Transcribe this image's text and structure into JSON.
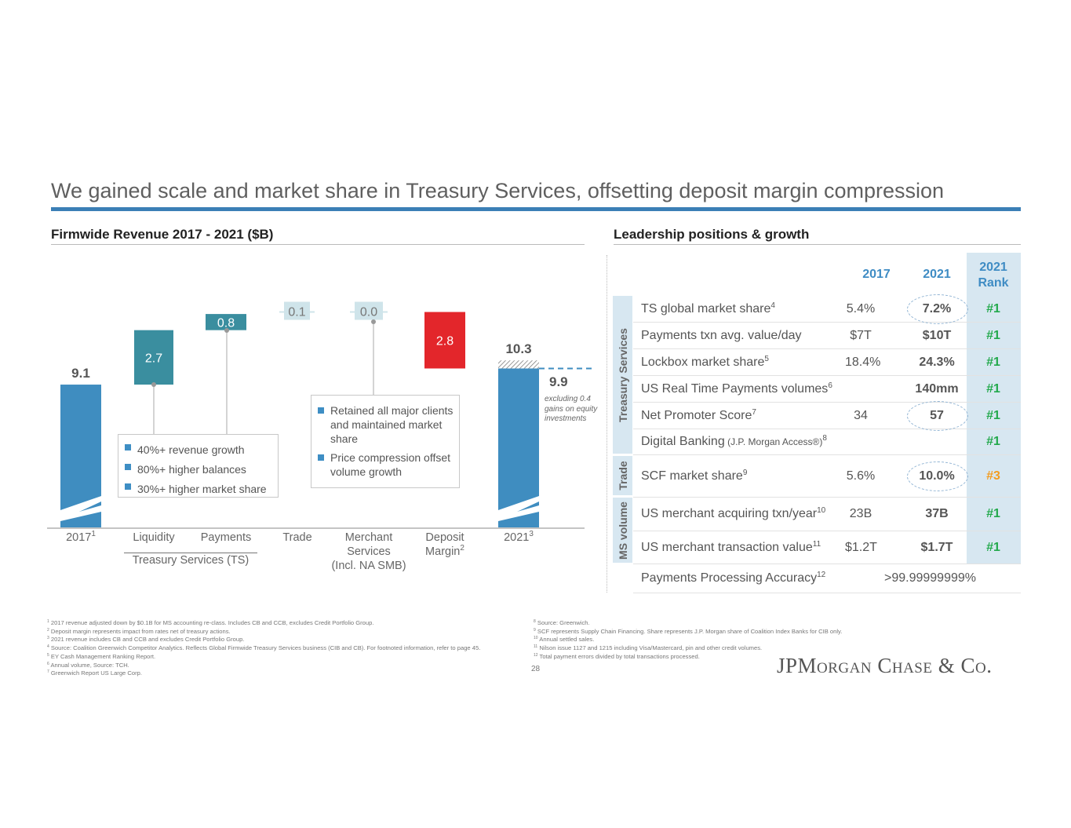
{
  "title": "We gained scale and market share in Treasury Services, offsetting deposit margin compression",
  "colors": {
    "accent_rule": "#3b7fb6",
    "total_bar": "#3f8dc0",
    "ts_bar": "#3a8e9f",
    "small_box": "#cfe4ea",
    "negative_bar": "#e3262b",
    "rank_green": "#23a94c",
    "rank_orange": "#f39c1f",
    "header_blue": "#3f8cc4"
  },
  "left_section": {
    "heading": "Firmwide Revenue 2017 - 2021 ($B)"
  },
  "right_section": {
    "heading": "Leadership positions & growth"
  },
  "chart_data": {
    "type": "bar",
    "subtype": "waterfall",
    "title": "Firmwide Revenue 2017 - 2021 ($B)",
    "y_axis_broken": true,
    "categories": [
      {
        "label": "2017",
        "sup": "1"
      },
      {
        "label": "Liquidity",
        "sup": ""
      },
      {
        "label": "Payments",
        "sup": ""
      },
      {
        "label": "Trade",
        "sup": ""
      },
      {
        "label": "Merchant Services (Incl. NA SMB)",
        "sup": ""
      },
      {
        "label": "Deposit Margin",
        "sup": "2"
      },
      {
        "label": "2021",
        "sup": "3"
      }
    ],
    "values": [
      9.1,
      2.7,
      0.8,
      0.1,
      0.0,
      -2.8,
      10.3
    ],
    "data_labels": [
      "9.1",
      "2.7",
      "0.8",
      "0.1",
      "0.0",
      "2.8",
      "10.3"
    ],
    "kinds": [
      "total",
      "increase",
      "increase",
      "increase",
      "increase",
      "decrease",
      "total"
    ],
    "group_label": "Treasury Services (TS)",
    "adjusted_total": {
      "value": 9.9,
      "label": "9.9",
      "note": "excluding 0.4 gains on equity investments"
    }
  },
  "callouts": {
    "ts": [
      "40%+ revenue growth",
      "80%+ higher balances",
      "30%+ higher market share"
    ],
    "ms": [
      "Retained all major clients and maintained market share",
      "Price compression offset volume growth"
    ]
  },
  "table": {
    "headers": {
      "y2017": "2017",
      "y2021": "2021",
      "rank": "2021 Rank"
    },
    "groups": [
      "Treasury Services",
      "Trade",
      "MS volume"
    ],
    "rows": [
      {
        "label": "TS global market share",
        "sup": "4",
        "v2017": "5.4%",
        "v2021": "7.2%",
        "rank": "#1",
        "circled": true
      },
      {
        "label": "Payments txn avg. value/day",
        "sup": "",
        "v2017": "$7T",
        "v2021": "$10T",
        "rank": "#1"
      },
      {
        "label": "Lockbox market share",
        "sup": "5",
        "v2017": "18.4%",
        "v2021": "24.3%",
        "rank": "#1"
      },
      {
        "label": "US Real Time Payments volumes",
        "sup": "6",
        "v2017": "",
        "v2021": "140mm",
        "rank": "#1"
      },
      {
        "label": "Net Promoter Score",
        "sup": "7",
        "v2017": "34",
        "v2021": "57",
        "rank": "#1",
        "circled": true
      },
      {
        "label": "Digital Banking",
        "small": "(J.P. Morgan Access®)",
        "sup": "8",
        "v2017": "",
        "v2021": "",
        "rank": "#1"
      },
      {
        "label": "SCF market share",
        "sup": "9",
        "v2017": "5.6%",
        "v2021": "10.0%",
        "rank": "#3",
        "circled": true
      },
      {
        "label": "US merchant acquiring txn/year",
        "sup": "10",
        "v2017": "23B",
        "v2021": "37B",
        "rank": "#1"
      },
      {
        "label": "US merchant transaction value",
        "sup": "11",
        "v2017": "$1.2T",
        "v2021": "$1.7T",
        "rank": "#1"
      }
    ],
    "last_row": {
      "label": "Payments Processing Accuracy",
      "sup": "12",
      "value": ">99.99999999%"
    }
  },
  "footnotes_left": [
    {
      "n": "1",
      "t": "2017 revenue adjusted down by $0.1B for MS accounting re-class. Includes CB and CCB, excludes Credit Portfolio Group."
    },
    {
      "n": "2",
      "t": "Deposit margin represents impact from rates net of treasury actions."
    },
    {
      "n": "3",
      "t": "2021 revenue includes CB and CCB and excludes Credit Portfolio Group."
    },
    {
      "n": "4",
      "t": "Source: Coalition Greenwich Competitor Analytics. Reflects Global Firmwide Treasury Services business (CIB and CB). For footnoted information, refer to page 45."
    },
    {
      "n": "5",
      "t": "EY Cash Management Ranking Report."
    },
    {
      "n": "6",
      "t": "Annual volume, Source: TCH."
    },
    {
      "n": "7",
      "t": "Greenwich Report US Large Corp."
    }
  ],
  "footnotes_right": [
    {
      "n": "8",
      "t": "Source: Greenwich."
    },
    {
      "n": "9",
      "t": "SCF represents Supply Chain Financing. Share represents J.P. Morgan share of Coalition Index Banks for CIB only."
    },
    {
      "n": "10",
      "t": "Annual settled sales."
    },
    {
      "n": "11",
      "t": "Nilson issue 1127 and 1215 including Visa/Mastercard, pin and other credit volumes."
    },
    {
      "n": "12",
      "t": "Total payment errors divided by total transactions processed."
    }
  ],
  "page_number": "28",
  "logo": "JPMorgan Chase & Co."
}
